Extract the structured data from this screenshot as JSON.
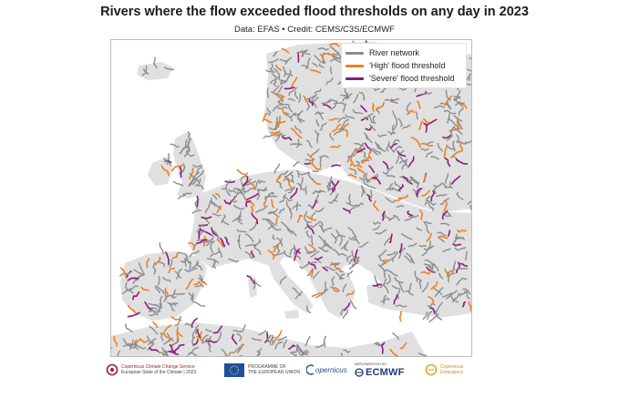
{
  "title": "Rivers where the flow exceeded flood thresholds on any day in 2023",
  "subtitle": "Data: EFAS • Credit: CEMS/C3S/ECMWF",
  "legend": {
    "items": [
      {
        "label": "River network",
        "color": "#8c8c8c"
      },
      {
        "label": "'High' flood threshold",
        "color": "#f07f1e"
      },
      {
        "label": "'Severe' flood threshold",
        "color": "#8b1a7e"
      }
    ]
  },
  "colors": {
    "land": "#e0e0e0",
    "sea": "#ffffff",
    "river": "#8c8c8c",
    "high": "#f07f1e",
    "severe": "#8b1a7e"
  },
  "footer": {
    "c3s_line1": "Copernicus Climate Change Service",
    "c3s_line2": "European State of the Climate | 2023",
    "eu_line1": "PROGRAMME OF",
    "eu_line2": "THE EUROPEAN UNION",
    "copernicus": "opernicus",
    "ecmwf_small": "IMPLEMENTED BY",
    "ecmwf": "ECMWF",
    "cems_line1": "Copernicus",
    "cems_line2": "Emergency"
  }
}
